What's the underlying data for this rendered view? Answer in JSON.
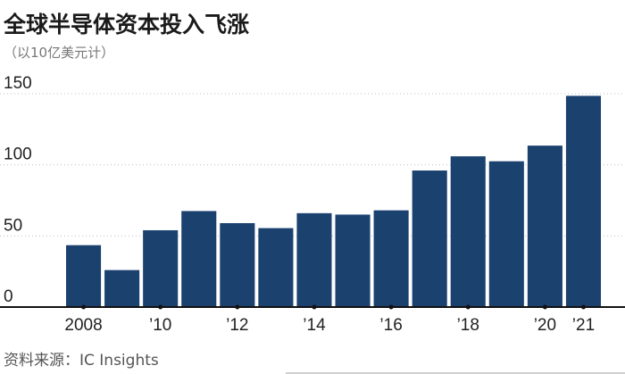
{
  "title": "全球半导体资本投入飞涨",
  "subtitle": "（以10亿美元计）",
  "source": "资料来源：IC Insights",
  "colors": {
    "bar": "#1b416f",
    "grid": "#bfbfbf",
    "axis": "#111111"
  },
  "chart_data": {
    "type": "bar",
    "title": "全球半导体资本投入飞涨",
    "subtitle": "（以10亿美元计）",
    "xlabel": "",
    "ylabel": "",
    "categories": [
      "2008",
      "2009",
      "2010",
      "2011",
      "2012",
      "2013",
      "2014",
      "2015",
      "2016",
      "2017",
      "2018",
      "2019",
      "2020",
      "2021"
    ],
    "values": [
      43.5,
      26,
      54,
      67.5,
      59,
      55.5,
      66,
      65,
      68,
      96,
      106,
      102.5,
      113.5,
      148.5
    ],
    "ylim": [
      0,
      150
    ],
    "yticks": [
      0,
      50,
      100,
      150
    ],
    "xtick_labels": [
      {
        "category": "2008",
        "label": "2008"
      },
      {
        "category": "2010",
        "label": "’10"
      },
      {
        "category": "2012",
        "label": "’12"
      },
      {
        "category": "2014",
        "label": "’14"
      },
      {
        "category": "2016",
        "label": "’16"
      },
      {
        "category": "2018",
        "label": "’18"
      },
      {
        "category": "2020",
        "label": "’20"
      },
      {
        "category": "2021",
        "label": "’21"
      }
    ],
    "grid": true
  }
}
